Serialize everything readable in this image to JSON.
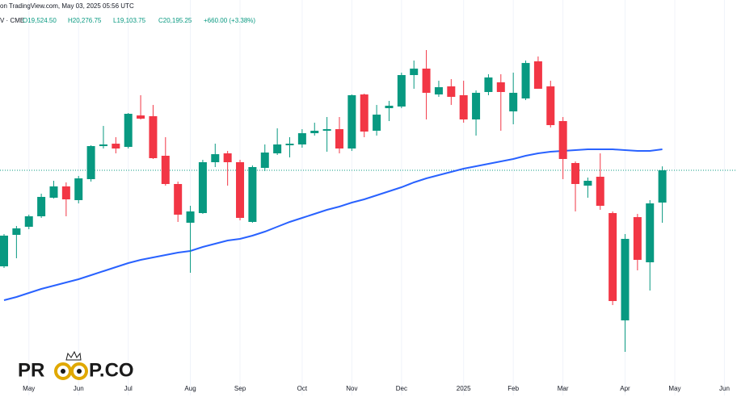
{
  "chart_data": {
    "type": "candlestick",
    "source": "on TradingView.com, May 03, 2025 05:56 UTC",
    "symbol": "V · CME",
    "ohlc_labels": {
      "open": "O19,524.50",
      "high": "H20,276.75",
      "low": "L19,103.75",
      "close": "C20,195.25"
    },
    "change_label": "+660.00 (+3.38%)",
    "watermark": {
      "left": "PR",
      "right": "P.CO"
    },
    "categories": [
      null,
      null,
      "May",
      null,
      null,
      null,
      "Jun",
      null,
      null,
      null,
      "Jul",
      null,
      null,
      null,
      null,
      "Aug",
      null,
      null,
      null,
      "Sep",
      null,
      null,
      null,
      null,
      "Oct",
      null,
      null,
      null,
      "Nov",
      null,
      null,
      null,
      "Dec",
      null,
      null,
      null,
      null,
      "2025",
      null,
      null,
      null,
      "Feb",
      null,
      null,
      null,
      "Mar",
      null,
      null,
      null,
      null,
      "Apr",
      null,
      null,
      null,
      "May",
      null,
      null,
      null,
      "Jun"
    ],
    "open": [
      18199,
      18853,
      19021,
      19239,
      19625,
      19860,
      19575,
      20011,
      20698,
      20748,
      20681,
      21335,
      21319,
      20497,
      19910,
      19105,
      19306,
      20363,
      20547,
      20363,
      19122,
      20245,
      20547,
      20715,
      20732,
      20966,
      21017,
      21050,
      20648,
      21771,
      21017,
      21486,
      21520,
      22174,
      22308,
      21771,
      21939,
      21755,
      21252,
      21822,
      22023,
      21419,
      21688,
      22459,
      21939,
      21218,
      20346,
      19876,
      20061,
      19306,
      17076,
      19222,
      18283,
      19524.5,
      null,
      null,
      null,
      null,
      null
    ],
    "high": [
      18870,
      19038,
      19273,
      19709,
      19977,
      19943,
      20078,
      20715,
      21117,
      20883,
      21386,
      21755,
      21553,
      20883,
      19960,
      19457,
      20413,
      20748,
      20597,
      20413,
      20296,
      20732,
      21067,
      20883,
      21050,
      21184,
      21302,
      21302,
      21771,
      21788,
      21553,
      21637,
      22224,
      22476,
      22694,
      22056,
      22090,
      22056,
      21855,
      22191,
      22191,
      22224,
      22476,
      22560,
      22056,
      21302,
      20379,
      20044,
      20547,
      19340,
      18870,
      19289,
      19575,
      20276.75,
      null,
      null,
      null,
      null,
      null
    ],
    "low": [
      18166,
      18367,
      18971,
      19206,
      19608,
      19239,
      19507,
      19960,
      20648,
      20547,
      20648,
      21252,
      20430,
      19876,
      19122,
      18065,
      19289,
      20262,
      19876,
      19155,
      19105,
      20178,
      20514,
      20463,
      20665,
      20916,
      20581,
      20547,
      20597,
      20883,
      20916,
      21218,
      21486,
      21889,
      21252,
      21721,
      21553,
      21184,
      20916,
      21755,
      21017,
      21151,
      21654,
      21889,
      21084,
      20011,
      19340,
      19625,
      19373,
      17394,
      16422,
      18116,
      17696,
      19103.75,
      null,
      null,
      null,
      null,
      null
    ],
    "close": [
      18837,
      18988,
      19239,
      19642,
      19860,
      19591,
      20027,
      20698,
      20732,
      20648,
      21369,
      21268,
      20447,
      19910,
      19273,
      19340,
      20363,
      20530,
      20363,
      19206,
      20262,
      20564,
      20732,
      20748,
      20966,
      21017,
      21050,
      20648,
      21755,
      21000,
      21352,
      21537,
      22174,
      22308,
      21805,
      21922,
      21721,
      21252,
      21805,
      22124,
      21822,
      21805,
      22425,
      21889,
      21134,
      20430,
      19910,
      19977,
      19457,
      17478,
      18770,
      18334,
      19507,
      20195.25,
      null,
      null,
      null,
      null,
      null
    ],
    "up_color": "#089981",
    "down_color": "#f23645",
    "ma": {
      "color": "#2962ff",
      "values": [
        17495,
        17562,
        17646,
        17730,
        17797,
        17864,
        17931,
        18015,
        18099,
        18183,
        18266,
        18334,
        18384,
        18434,
        18484,
        18518,
        18602,
        18669,
        18736,
        18770,
        18837,
        18920,
        19021,
        19122,
        19206,
        19289,
        19373,
        19440,
        19524,
        19591,
        19675,
        19759,
        19843,
        19943,
        20027,
        20094,
        20161,
        20229,
        20279,
        20329,
        20379,
        20430,
        20497,
        20547,
        20581,
        20597,
        20614,
        20631,
        20631,
        20631,
        20614,
        20597,
        20597,
        20631,
        null,
        null,
        null,
        null,
        null
      ]
    },
    "ylim": [
      15516,
      23734
    ],
    "grid": true
  }
}
